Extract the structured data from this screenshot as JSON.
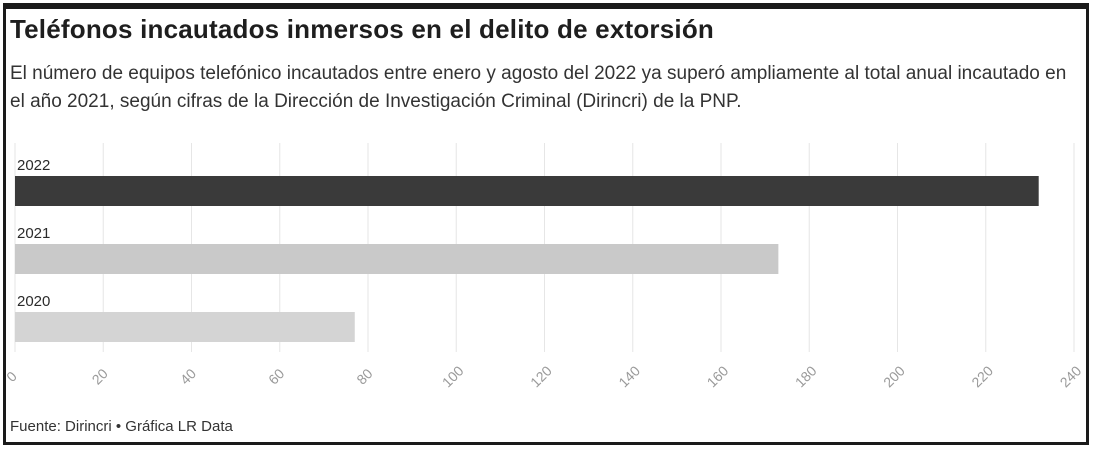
{
  "header": {
    "title": "Teléfonos incautados inmersos en el delito de extorsión",
    "subtitle": "El número de equipos telefónico incautados entre enero y agosto del 2022 ya superó ampliamente al total anual incautado en el año 2021, según cifras de la Dirección de Investigación Criminal (Dirincri) de la PNP."
  },
  "footer": {
    "source": "Fuente: Dirincri • Gráfica LR Data"
  },
  "colors": {
    "bar_2022": "#3a3a3a",
    "bar_2021": "#c9c9c9",
    "bar_2020": "#d4d4d4",
    "grid": "#e6e6e6",
    "tick": "#9a9a9a"
  },
  "chart_data": {
    "type": "bar",
    "orientation": "horizontal",
    "categories": [
      "2022",
      "2021",
      "2020"
    ],
    "values": [
      232,
      173,
      77
    ],
    "xlim": [
      0,
      240
    ],
    "xticks": [
      0,
      20,
      40,
      60,
      80,
      100,
      120,
      140,
      160,
      180,
      200,
      220,
      240
    ],
    "grid": true,
    "legend": "none"
  }
}
